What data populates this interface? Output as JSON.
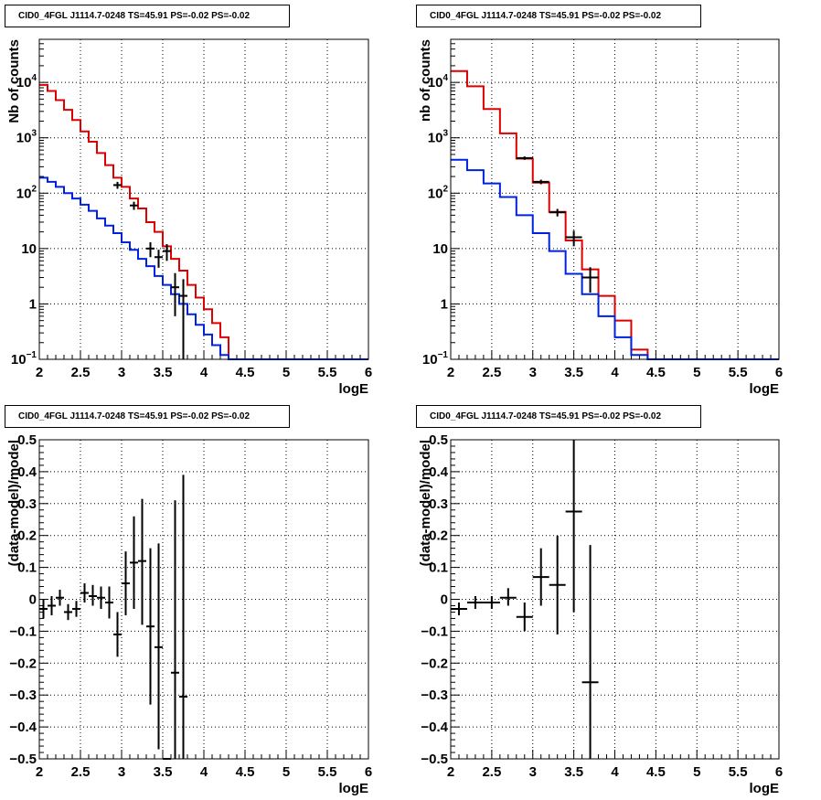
{
  "colors": {
    "model": "#dd0000",
    "background": "#0022dd",
    "data": "#000000"
  },
  "chart_data": [
    {
      "type": "line",
      "title": "CID0_4FGL J1114.7-0248 TS=45.91 PS=-0.02 PS=-0.02",
      "xlabel": "logE",
      "ylabel": "Nb of counts",
      "yscale": "log",
      "xlim": [
        2,
        6
      ],
      "ylim": [
        0.1,
        60000
      ],
      "x_ticks": [
        "2",
        "2.5",
        "3",
        "3.5",
        "4",
        "4.5",
        "5",
        "5.5",
        "6"
      ],
      "y_ticks": [
        {
          "v": 0.1,
          "base": "10",
          "exp": "−1"
        },
        {
          "v": 1,
          "label": "1"
        },
        {
          "v": 10,
          "label": "10"
        },
        {
          "v": 100,
          "base": "10",
          "exp": "2"
        },
        {
          "v": 1000,
          "base": "10",
          "exp": "3"
        },
        {
          "v": 10000,
          "base": "10",
          "exp": "4"
        }
      ],
      "grid": true,
      "bin_edges": [
        2,
        2.1,
        2.2,
        2.3,
        2.4,
        2.5,
        2.6,
        2.7,
        2.8,
        2.9,
        3,
        3.1,
        3.2,
        3.3,
        3.4,
        3.5,
        3.6,
        3.7,
        3.8,
        3.9,
        4,
        4.1,
        4.2,
        4.3,
        4.4,
        4.5,
        4.6,
        4.7,
        4.8,
        4.9,
        5,
        5.1,
        5.2,
        5.3,
        5.4,
        5.5,
        5.6,
        5.7,
        5.8,
        5.9,
        6
      ],
      "series": [
        {
          "role": "model",
          "values": [
            9000,
            7000,
            4800,
            3200,
            2100,
            1300,
            850,
            530,
            320,
            190,
            130,
            80,
            53,
            30,
            20,
            11,
            6.5,
            4,
            2.2,
            1.3,
            0.8,
            0.45,
            0.25,
            0.1,
            0.1,
            0.1,
            0.1,
            0.1,
            0.1,
            0.1,
            0.1,
            0.1,
            0.1,
            0.1,
            0.1,
            0.1,
            0.1,
            0.1,
            0.1,
            0.1
          ]
        },
        {
          "role": "background",
          "values": [
            190,
            160,
            130,
            100,
            80,
            62,
            48,
            35,
            26,
            19,
            13,
            9.5,
            6.5,
            4.8,
            3.2,
            2.2,
            1.5,
            1,
            0.65,
            0.42,
            0.28,
            0.18,
            0.12,
            0.1,
            0.1,
            0.1,
            0.1,
            0.1,
            0.1,
            0.1,
            0.1,
            0.1,
            0.1,
            0.1,
            0.1,
            0.1,
            0.1,
            0.1,
            0.1,
            0.1
          ]
        },
        {
          "role": "data",
          "x": [
            2.95,
            3.15,
            3.35,
            3.45,
            3.55,
            3.65,
            3.75
          ],
          "y": [
            140,
            60,
            10,
            7,
            9,
            2,
            1.4
          ],
          "lo": [
            120,
            50,
            7,
            4.5,
            6,
            0.6,
            0.1
          ],
          "hi": [
            160,
            70,
            13,
            9.5,
            12,
            3.6,
            2.8
          ]
        }
      ]
    },
    {
      "type": "line",
      "title": "CID0_4FGL J1114.7-0248 TS=45.91 PS=-0.02 PS=-0.02",
      "xlabel": "logE",
      "ylabel": "nb of counts",
      "yscale": "log",
      "xlim": [
        2,
        6
      ],
      "ylim": [
        0.1,
        60000
      ],
      "x_ticks": [
        "2",
        "2.5",
        "3",
        "3.5",
        "4",
        "4.5",
        "5",
        "5.5",
        "6"
      ],
      "y_ticks": [
        {
          "v": 0.1,
          "base": "10",
          "exp": "−1"
        },
        {
          "v": 1,
          "label": "1"
        },
        {
          "v": 10,
          "label": "10"
        },
        {
          "v": 100,
          "base": "10",
          "exp": "2"
        },
        {
          "v": 1000,
          "base": "10",
          "exp": "3"
        },
        {
          "v": 10000,
          "base": "10",
          "exp": "4"
        }
      ],
      "grid": true,
      "bin_edges": [
        2,
        2.2,
        2.4,
        2.6,
        2.8,
        3,
        3.2,
        3.4,
        3.6,
        3.8,
        4,
        4.2,
        4.4,
        4.6,
        4.8,
        5,
        5.2,
        5.4,
        5.6,
        5.8,
        6
      ],
      "series": [
        {
          "role": "model",
          "values": [
            16000,
            8500,
            3300,
            1200,
            420,
            155,
            46,
            14,
            4.2,
            1.4,
            0.5,
            0.15,
            0.1,
            0.1,
            0.1,
            0.1,
            0.1,
            0.1,
            0.1,
            0.1
          ]
        },
        {
          "role": "background",
          "values": [
            400,
            260,
            150,
            85,
            40,
            19,
            9,
            3.5,
            1.5,
            0.6,
            0.25,
            0.12,
            0.1,
            0.1,
            0.1,
            0.1,
            0.1,
            0.1,
            0.1,
            0.1
          ]
        },
        {
          "role": "data",
          "x": [
            2.9,
            3.1,
            3.3,
            3.5,
            3.7
          ],
          "y": [
            430,
            160,
            45,
            16,
            3
          ],
          "lo": [
            400,
            145,
            38,
            11,
            1.6
          ],
          "hi": [
            460,
            175,
            52,
            21,
            4.6
          ]
        }
      ]
    },
    {
      "type": "scatter",
      "title": "CID0_4FGL J1114.7-0248 TS=45.91 PS=-0.02 PS=-0.02",
      "xlabel": "logE",
      "ylabel": "(data-model)/model",
      "yscale": "linear",
      "xlim": [
        2,
        6
      ],
      "ylim": [
        -0.5,
        0.5
      ],
      "x_ticks": [
        "2",
        "2.5",
        "3",
        "3.5",
        "4",
        "4.5",
        "5",
        "5.5",
        "6"
      ],
      "y_ticks": [
        {
          "v": -0.5,
          "label": "−0.5"
        },
        {
          "v": -0.4,
          "label": "−0.4"
        },
        {
          "v": -0.3,
          "label": "−0.3"
        },
        {
          "v": -0.2,
          "label": "−0.2"
        },
        {
          "v": -0.1,
          "label": "−0.1"
        },
        {
          "v": 0,
          "label": "0"
        },
        {
          "v": 0.1,
          "label": "0.1"
        },
        {
          "v": 0.2,
          "label": "0.2"
        },
        {
          "v": 0.3,
          "label": "0.3"
        },
        {
          "v": 0.4,
          "label": "0.4"
        },
        {
          "v": 0.5,
          "label": "0.5"
        }
      ],
      "grid": true,
      "half_width": 0.05,
      "points": {
        "x": [
          2.05,
          2.15,
          2.25,
          2.35,
          2.45,
          2.55,
          2.65,
          2.75,
          2.85,
          2.95,
          3.05,
          3.15,
          3.25,
          3.35,
          3.45,
          3.55,
          3.65,
          3.75
        ],
        "y": [
          -0.03,
          -0.02,
          0.005,
          -0.04,
          -0.03,
          0.02,
          0.01,
          0.005,
          -0.01,
          -0.11,
          0.05,
          0.115,
          0.12,
          -0.085,
          -0.15,
          -0.5,
          -0.23,
          -0.305
        ],
        "lo": [
          -0.06,
          -0.05,
          -0.02,
          -0.065,
          -0.055,
          -0.01,
          -0.02,
          -0.03,
          -0.06,
          -0.18,
          -0.05,
          -0.03,
          -0.08,
          -0.33,
          -0.47,
          -0.5,
          -0.5,
          -0.5
        ],
        "hi": [
          0.0,
          0.01,
          0.03,
          -0.015,
          -0.005,
          0.05,
          0.045,
          0.04,
          0.04,
          -0.04,
          0.15,
          0.26,
          0.315,
          0.16,
          0.175,
          -0.5,
          0.31,
          0.39
        ]
      }
    },
    {
      "type": "scatter",
      "title": "CID0_4FGL J1114.7-0248 TS=45.91 PS=-0.02 PS=-0.02",
      "xlabel": "logE",
      "ylabel": "(data-model)/model",
      "yscale": "linear",
      "xlim": [
        2,
        6
      ],
      "ylim": [
        -0.5,
        0.5
      ],
      "x_ticks": [
        "2",
        "2.5",
        "3",
        "3.5",
        "4",
        "4.5",
        "5",
        "5.5",
        "6"
      ],
      "y_ticks": [
        {
          "v": -0.5,
          "label": "−0.5"
        },
        {
          "v": -0.4,
          "label": "−0.4"
        },
        {
          "v": -0.3,
          "label": "−0.3"
        },
        {
          "v": -0.2,
          "label": "−0.2"
        },
        {
          "v": -0.1,
          "label": "−0.1"
        },
        {
          "v": 0,
          "label": "0"
        },
        {
          "v": 0.1,
          "label": "0.1"
        },
        {
          "v": 0.2,
          "label": "0.2"
        },
        {
          "v": 0.3,
          "label": "0.3"
        },
        {
          "v": 0.4,
          "label": "0.4"
        },
        {
          "v": 0.5,
          "label": "0.5"
        }
      ],
      "grid": true,
      "half_width": 0.1,
      "points": {
        "x": [
          2.1,
          2.3,
          2.5,
          2.7,
          2.9,
          3.1,
          3.3,
          3.5,
          3.7
        ],
        "y": [
          -0.03,
          -0.01,
          -0.01,
          0.005,
          -0.055,
          0.07,
          0.045,
          0.275,
          -0.26
        ],
        "lo": [
          -0.05,
          -0.03,
          -0.03,
          -0.02,
          -0.1,
          -0.02,
          -0.11,
          -0.04,
          -0.5
        ],
        "hi": [
          -0.01,
          0.01,
          0.01,
          0.035,
          -0.01,
          0.16,
          0.2,
          0.5,
          0.17
        ]
      }
    }
  ]
}
